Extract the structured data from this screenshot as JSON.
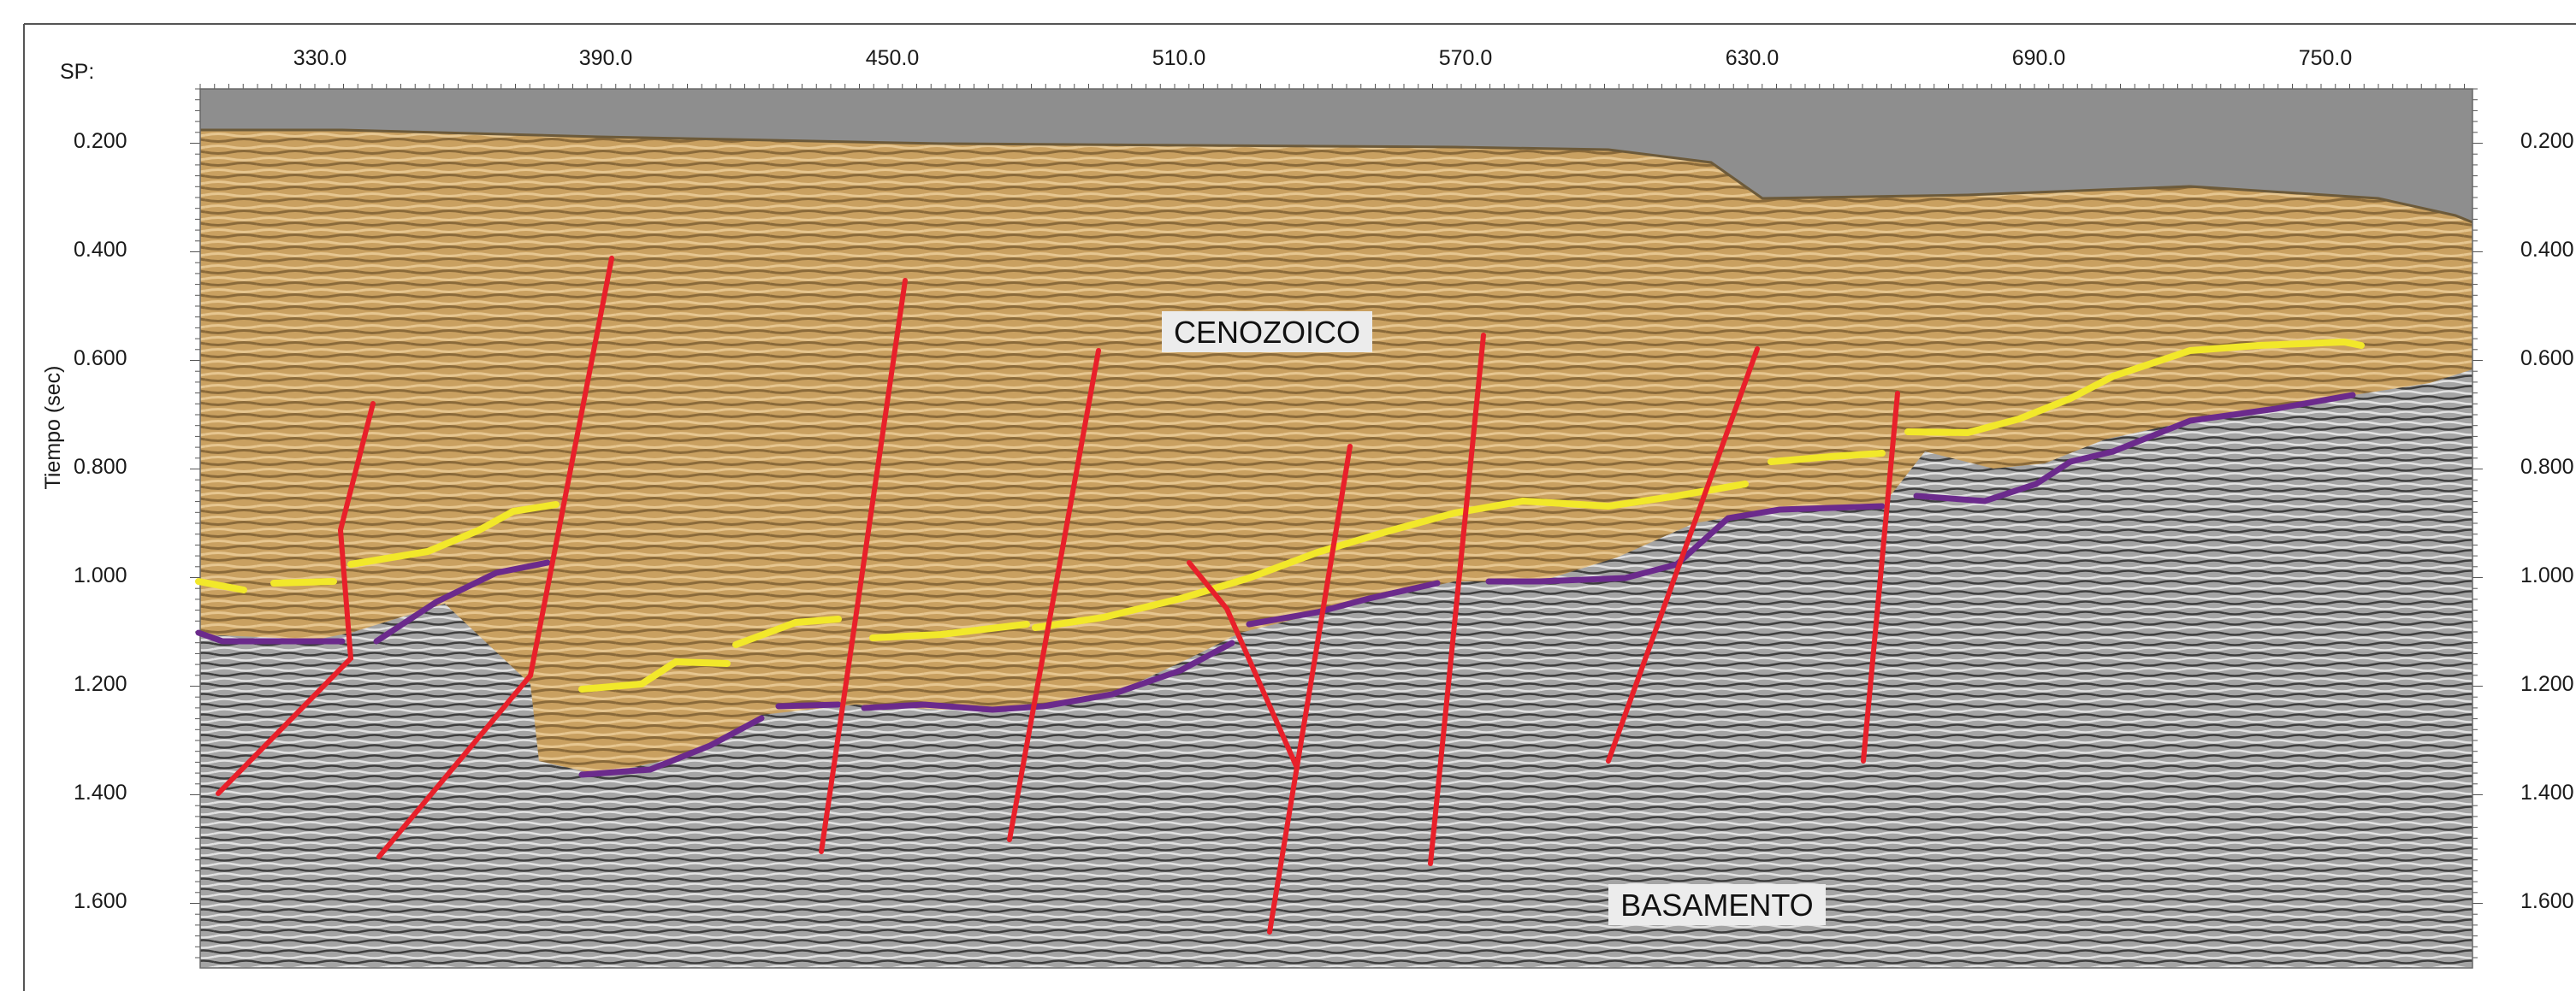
{
  "figure": {
    "sp_label": "SP:",
    "y_axis_label": "Tiempo (sec)",
    "sp_ticks": [
      "330.0",
      "390.0",
      "450.0",
      "510.0",
      "570.0",
      "630.0",
      "690.0",
      "750.0"
    ],
    "time_ticks_left": [
      "0.200",
      "0.400",
      "0.600",
      "0.800",
      "1.000",
      "1.200",
      "1.400",
      "1.600"
    ],
    "time_ticks_right": [
      "0.200",
      "0.400",
      "0.600",
      "0.800",
      "1.000",
      "1.200",
      "1.400",
      "1.600"
    ],
    "units": [
      {
        "id": "cenozoico",
        "label": "CENOZOICO"
      },
      {
        "id": "basamento",
        "label": "BASAMENTO"
      }
    ]
  },
  "colors": {
    "water": "#8e8e8e",
    "sediment": "#c9a060",
    "basement": "#9b9b9b",
    "fault": "#e8202a",
    "yellow_horizon": "#f2e82a",
    "purple_horizon": "#6b2a8c",
    "frame": "#444444"
  }
}
